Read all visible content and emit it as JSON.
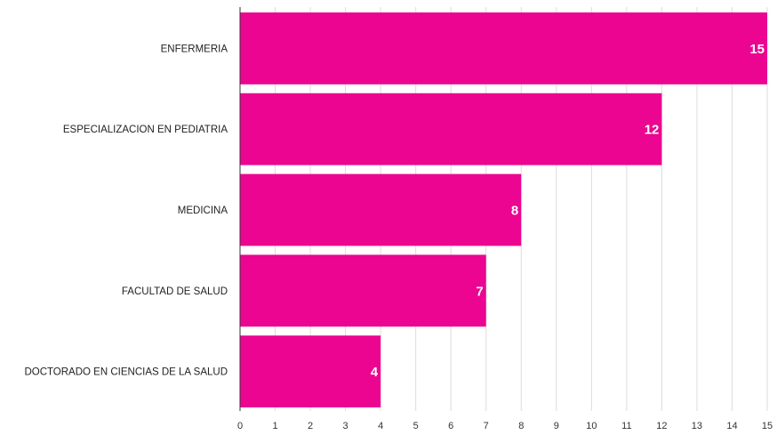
{
  "chart_data": {
    "type": "bar",
    "orientation": "horizontal",
    "categories": [
      "ENFERMERIA",
      "ESPECIALIZACION EN PEDIATRIA",
      "MEDICINA",
      "FACULTAD DE SALUD",
      "DOCTORADO EN CIENCIAS DE LA SALUD"
    ],
    "values": [
      15,
      12,
      8,
      7,
      4
    ],
    "data_labels": [
      "15",
      "12",
      "8",
      "7",
      "4"
    ],
    "xticks": [
      "0",
      "1",
      "2",
      "3",
      "4",
      "5",
      "6",
      "7",
      "8",
      "9",
      "10",
      "11",
      "12",
      "13",
      "14",
      "15"
    ],
    "xlim": [
      0,
      15
    ],
    "grid": true,
    "colors": {
      "bar": "#ec0590",
      "grid": "#dddddd",
      "axis": "#333333"
    }
  }
}
